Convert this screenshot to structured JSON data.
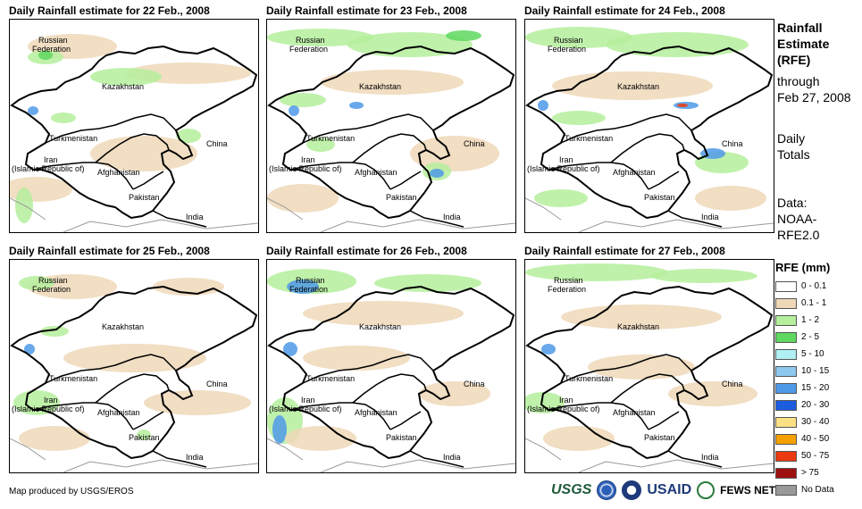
{
  "panels": [
    {
      "title": "Daily Rainfall estimate for 22 Feb., 2008"
    },
    {
      "title": "Daily Rainfall estimate for 23 Feb., 2008"
    },
    {
      "title": "Daily Rainfall estimate for 24 Feb., 2008"
    },
    {
      "title": "Daily Rainfall estimate for 25 Feb., 2008"
    },
    {
      "title": "Daily Rainfall estimate for 26 Feb., 2008"
    },
    {
      "title": "Daily Rainfall estimate for 27 Feb., 2008"
    }
  ],
  "map_labels": {
    "russia_1": "Russian",
    "russia_2": "Federation",
    "kazakhstan": "Kazakhstan",
    "turkmenistan": "Turkmenistan",
    "china": "China",
    "iran_1": "Iran",
    "iran_2": "(Islamic Republic of)",
    "afghanistan": "Afghanistan",
    "pakistan": "Pakistan",
    "india": "India"
  },
  "side_info": {
    "title_1": "Rainfall",
    "title_2": "Estimate",
    "title_3": "(RFE)",
    "through_1": "through",
    "through_2": "Feb 27, 2008",
    "totals_1": "Daily",
    "totals_2": "Totals",
    "data_1": "Data:",
    "data_2": "NOAA-",
    "data_3": "RFE2.0"
  },
  "legend": {
    "title": "RFE (mm)",
    "items": [
      {
        "label": "0 - 0.1",
        "color": "#ffffff"
      },
      {
        "label": "0.1 - 1",
        "color": "#eed8b8"
      },
      {
        "label": "1 - 2",
        "color": "#b5ef9c"
      },
      {
        "label": "2 - 5",
        "color": "#5fd85f"
      },
      {
        "label": "5 - 10",
        "color": "#b0f0f5"
      },
      {
        "label": "10 - 15",
        "color": "#8ec8ef"
      },
      {
        "label": "15 - 20",
        "color": "#4f9ae8"
      },
      {
        "label": "20 - 30",
        "color": "#1c5de0"
      },
      {
        "label": "30 - 40",
        "color": "#fbe184"
      },
      {
        "label": "40 - 50",
        "color": "#f5a000"
      },
      {
        "label": "50 - 75",
        "color": "#ec3a10"
      },
      {
        "label": "> 75",
        "color": "#9e1010"
      },
      {
        "label": "No Data",
        "color": "#999999"
      }
    ]
  },
  "credit": "Map produced by USGS/EROS",
  "logos": {
    "usgs": "USGS",
    "usaid": "USAID",
    "fewsnet": "FEWS NET"
  }
}
